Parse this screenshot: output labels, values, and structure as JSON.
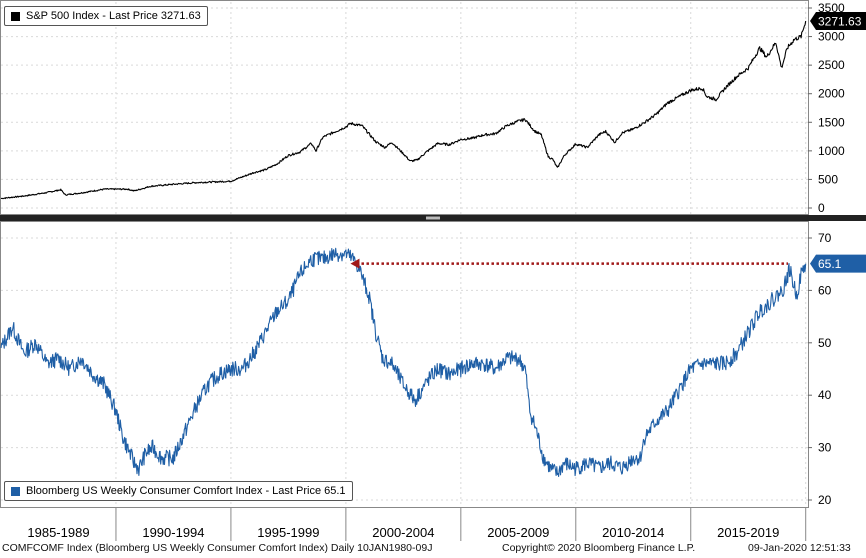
{
  "chart_data": [
    {
      "type": "line",
      "legend_label": "S&P 500 Index - Last Price 3271.63",
      "last_value_label": "3271.63",
      "color": "#000000",
      "ylim": [
        0,
        3500
      ],
      "y_ticks": [
        "0",
        "500",
        "1000",
        "1500",
        "2000",
        "2500",
        "3000",
        "3500"
      ],
      "y_tick_values": [
        0,
        500,
        1000,
        1500,
        2000,
        2500,
        3000,
        3500
      ],
      "xlim": [
        1985.0,
        2020.1
      ],
      "series": [
        {
          "x": [
            1985.0,
            1986.0,
            1987.0,
            1987.6,
            1987.8,
            1988.5,
            1989.5,
            1990.5,
            1990.8,
            1991.5,
            1992.5,
            1993.5,
            1994.5,
            1995.0,
            1995.5,
            1996.0,
            1996.5,
            1997.0,
            1997.5,
            1998.0,
            1998.5,
            1998.7,
            1999.0,
            1999.5,
            2000.0,
            2000.2,
            2000.7,
            2001.0,
            2001.3,
            2001.7,
            2002.0,
            2002.5,
            2002.8,
            2003.1,
            2003.5,
            2004.0,
            2004.5,
            2005.0,
            2005.5,
            2006.0,
            2006.5,
            2007.0,
            2007.5,
            2007.8,
            2008.2,
            2008.5,
            2008.8,
            2009.0,
            2009.2,
            2009.5,
            2010.0,
            2010.5,
            2011.0,
            2011.3,
            2011.7,
            2012.0,
            2012.5,
            2013.0,
            2013.5,
            2014.0,
            2014.5,
            2015.0,
            2015.5,
            2015.7,
            2016.1,
            2016.5,
            2017.0,
            2017.5,
            2018.0,
            2018.3,
            2018.7,
            2018.95,
            2019.2,
            2019.5,
            2019.8,
            2020.0
          ],
          "values": [
            167,
            210,
            270,
            320,
            230,
            265,
            330,
            330,
            300,
            380,
            415,
            445,
            460,
            470,
            545,
            620,
            670,
            770,
            920,
            980,
            1130,
            1000,
            1240,
            1330,
            1420,
            1480,
            1440,
            1300,
            1160,
            1060,
            1150,
            950,
            820,
            840,
            980,
            1130,
            1110,
            1200,
            1220,
            1280,
            1300,
            1440,
            1520,
            1550,
            1350,
            1280,
            900,
            850,
            700,
            920,
            1120,
            1060,
            1280,
            1340,
            1150,
            1310,
            1380,
            1500,
            1640,
            1840,
            1950,
            2060,
            2100,
            1950,
            1900,
            2100,
            2300,
            2450,
            2800,
            2640,
            2900,
            2450,
            2800,
            2950,
            3000,
            3271.63
          ]
        }
      ]
    },
    {
      "type": "line",
      "legend_label": "Bloomberg US Weekly Consumer Comfort Index - Last Price 65.1",
      "last_value_label": "65.1",
      "color": "#1f5fa6",
      "ylim": [
        20,
        70
      ],
      "y_ticks": [
        "20",
        "30",
        "40",
        "50",
        "60",
        "70"
      ],
      "y_tick_values": [
        20,
        30,
        40,
        50,
        60,
        70
      ],
      "xlim": [
        1985.0,
        2020.1
      ],
      "reference_line": {
        "value": 65.1,
        "x_start": 2000.2,
        "color": "#a01818"
      },
      "series": [
        {
          "x": [
            1985.0,
            1985.5,
            1986.0,
            1986.5,
            1987.0,
            1987.5,
            1988.0,
            1988.5,
            1989.0,
            1989.5,
            1990.0,
            1990.3,
            1990.6,
            1990.8,
            1991.0,
            1991.3,
            1991.6,
            1992.0,
            1992.5,
            1992.8,
            1993.0,
            1993.5,
            1994.0,
            1994.5,
            1995.0,
            1995.5,
            1996.0,
            1996.5,
            1997.0,
            1997.5,
            1998.0,
            1998.5,
            1999.0,
            1999.5,
            2000.0,
            2000.3,
            2000.6,
            2001.0,
            2001.3,
            2001.6,
            2002.0,
            2002.5,
            2003.0,
            2003.3,
            2003.6,
            2004.0,
            2004.5,
            2005.0,
            2005.5,
            2006.0,
            2006.5,
            2007.0,
            2007.5,
            2007.8,
            2008.0,
            2008.3,
            2008.6,
            2008.9,
            2009.2,
            2009.5,
            2010.0,
            2010.5,
            2011.0,
            2011.5,
            2012.0,
            2012.5,
            2012.8,
            2013.0,
            2013.5,
            2014.0,
            2014.5,
            2015.0,
            2015.5,
            2016.0,
            2016.5,
            2017.0,
            2017.5,
            2018.0,
            2018.5,
            2019.0,
            2019.3,
            2019.6,
            2019.8,
            2020.0
          ],
          "values": [
            49,
            53,
            48,
            50,
            46,
            47,
            45,
            47,
            44,
            42,
            37,
            32,
            29,
            27,
            26,
            29,
            30,
            28,
            28,
            31,
            33,
            38,
            42,
            44,
            45,
            45,
            48,
            52,
            56,
            58,
            63,
            66,
            66,
            67,
            67,
            66,
            64,
            59,
            52,
            47,
            46,
            42,
            39,
            41,
            43,
            45,
            44,
            45,
            46,
            46,
            45,
            47,
            47,
            45,
            37,
            33,
            28,
            26,
            25,
            27,
            26,
            27,
            26,
            27,
            26,
            28,
            28,
            32,
            35,
            37,
            41,
            45,
            46,
            46,
            46,
            48,
            52,
            56,
            58,
            60,
            64,
            59,
            63,
            65.1
          ]
        }
      ]
    }
  ],
  "x_axis": {
    "labels": [
      "1985-1989",
      "1990-1994",
      "1995-1999",
      "2000-2004",
      "2005-2009",
      "2010-2014",
      "2015-2019"
    ],
    "label_centers": [
      1987.5,
      1992.5,
      1997.5,
      2002.5,
      2007.5,
      2012.5,
      2017.5
    ],
    "dividers": [
      1990,
      1995,
      2000,
      2005,
      2010,
      2015,
      2020
    ]
  },
  "footer": {
    "left": "COMFCOMF Index (Bloomberg US Weekly Consumer Comfort Index)   Daily 10JAN1980-09J",
    "center": "Copyright© 2020 Bloomberg Finance L.P.",
    "right": "09-Jan-2020 12:51:33"
  }
}
